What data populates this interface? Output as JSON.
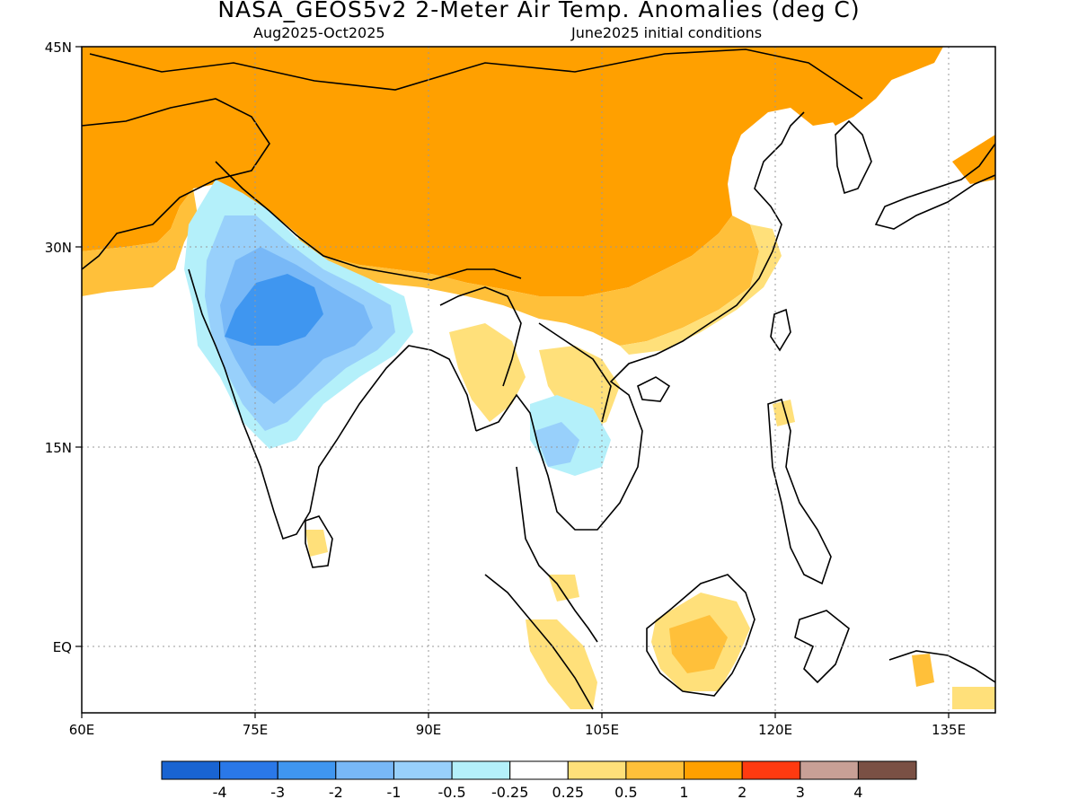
{
  "title": "NASA_GEOS5v2 2-Meter Air Temp. Anomalies (deg C)",
  "subtitle_left": "Aug2025-Oct2025",
  "subtitle_right": "June2025 initial conditions",
  "lat_labels": [
    "45N",
    "30N",
    "15N",
    "EQ"
  ],
  "lon_labels": [
    "60E",
    "75E",
    "90E",
    "105E",
    "120E",
    "135E"
  ],
  "colorbar": {
    "colors": [
      "#1964d2",
      "#2a78e8",
      "#3f96f0",
      "#78b8f7",
      "#98d0fb",
      "#b4f0fa",
      "#ffffff",
      "#ffe07a",
      "#ffc03a",
      "#ffa000",
      "#ff3a10",
      "#c8a096",
      "#7a5044"
    ],
    "labels": [
      "-4",
      "-3",
      "-2",
      "-1",
      "-0.5",
      "-0.25",
      "0.25",
      "0.5",
      "1",
      "2",
      "3",
      "4"
    ]
  }
}
